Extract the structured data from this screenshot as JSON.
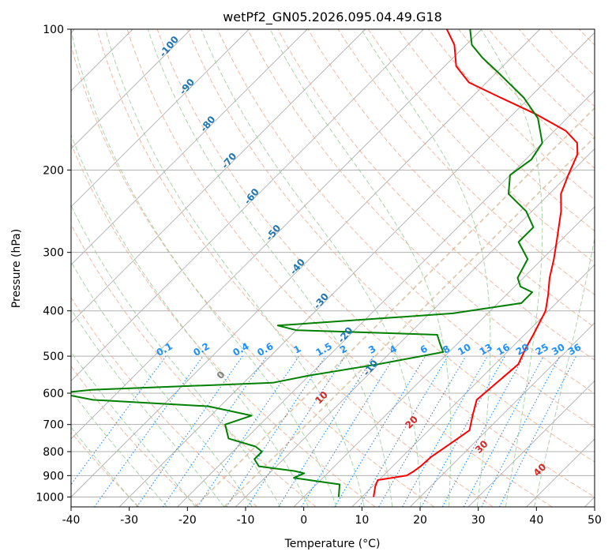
{
  "chart_data": {
    "type": "line",
    "title": "wetPf2_GN05.2026.095.04.49.G18",
    "xlabel": "Temperature (°C)",
    "ylabel": "Pressure (hPa)",
    "xlim": [
      -40,
      50
    ],
    "ylim": [
      1050,
      100
    ],
    "yscale": "log",
    "x_ticks": [
      -40,
      -30,
      -20,
      -10,
      0,
      10,
      20,
      30,
      40,
      50
    ],
    "y_ticks": [
      100,
      200,
      300,
      400,
      500,
      600,
      700,
      800,
      900,
      1000
    ],
    "grid": true,
    "skew": 35,
    "series": [
      {
        "name": "",
        "color": "#ff0000",
        "points": [
          [
            12,
            1000
          ],
          [
            10.5,
            950
          ],
          [
            9.8,
            920
          ],
          [
            14,
            900
          ],
          [
            14.5,
            880
          ],
          [
            14.8,
            860
          ],
          [
            15,
            820
          ],
          [
            16,
            770
          ],
          [
            17,
            720
          ],
          [
            15,
            670
          ],
          [
            13,
            620
          ],
          [
            13.5,
            570
          ],
          [
            14,
            520
          ],
          [
            12.5,
            480
          ],
          [
            11.5,
            450
          ],
          [
            9.5,
            400
          ],
          [
            7.2,
            370
          ],
          [
            4.5,
            340
          ],
          [
            2,
            310
          ],
          [
            -1,
            280
          ],
          [
            -5,
            245
          ],
          [
            -8,
            225
          ],
          [
            -10,
            205
          ],
          [
            -12,
            185
          ],
          [
            -14,
            175
          ],
          [
            -18,
            165
          ],
          [
            -26,
            152
          ],
          [
            -35,
            140
          ],
          [
            -43,
            130
          ],
          [
            -48,
            120
          ],
          [
            -52,
            108
          ],
          [
            -56,
            100
          ]
        ]
      },
      {
        "name": "",
        "color": "#008000",
        "points": [
          [
            6,
            1000
          ],
          [
            4,
            940
          ],
          [
            -2,
            920
          ],
          [
            -5,
            910
          ],
          [
            -4,
            890
          ],
          [
            -6,
            880
          ],
          [
            -13,
            860
          ],
          [
            -15,
            830
          ],
          [
            -15,
            800
          ],
          [
            -17,
            780
          ],
          [
            -23,
            750
          ],
          [
            -26,
            700
          ],
          [
            -23,
            670
          ],
          [
            -32,
            640
          ],
          [
            -53,
            620
          ],
          [
            -60,
            600
          ],
          [
            -55,
            590
          ],
          [
            -25,
            570
          ],
          [
            -20,
            550
          ],
          [
            -10,
            520
          ],
          [
            -1,
            490
          ],
          [
            -3,
            470
          ],
          [
            -5,
            450
          ],
          [
            -30,
            440
          ],
          [
            -34,
            430
          ],
          [
            -6,
            405
          ],
          [
            4,
            385
          ],
          [
            4,
            365
          ],
          [
            1,
            355
          ],
          [
            -1,
            340
          ],
          [
            -2.5,
            310
          ],
          [
            -7,
            285
          ],
          [
            -7,
            265
          ],
          [
            -11,
            245
          ],
          [
            -17,
            225
          ],
          [
            -20,
            205
          ],
          [
            -19,
            190
          ],
          [
            -20,
            175
          ],
          [
            -25,
            155
          ],
          [
            -31,
            140
          ],
          [
            -39,
            125
          ],
          [
            -45,
            115
          ],
          [
            -49,
            108
          ],
          [
            -52,
            100
          ]
        ]
      }
    ],
    "mixing_ratio_labels": [
      "0.1",
      "0.2",
      "0.4",
      "0.6",
      "1",
      "1.5",
      "2",
      "3",
      "4",
      "6",
      "8",
      "10",
      "13",
      "16",
      "20",
      "25",
      "30",
      "36"
    ],
    "dry_adiabat_labels": [
      "-100",
      "-90",
      "-80",
      "-70",
      "-60",
      "-50",
      "-40",
      "-30",
      "-20",
      "-10"
    ],
    "moist_adiabat_labels": [
      "0",
      "10",
      "20",
      "30",
      "40"
    ],
    "colors": {
      "isotherm": "#b0b0b0",
      "dry_adiabat": "#f0a080",
      "moist_adiabat": "#8cc88c",
      "mixing_ratio": "#1e90ff",
      "dendritic": "#d2b48c"
    }
  }
}
